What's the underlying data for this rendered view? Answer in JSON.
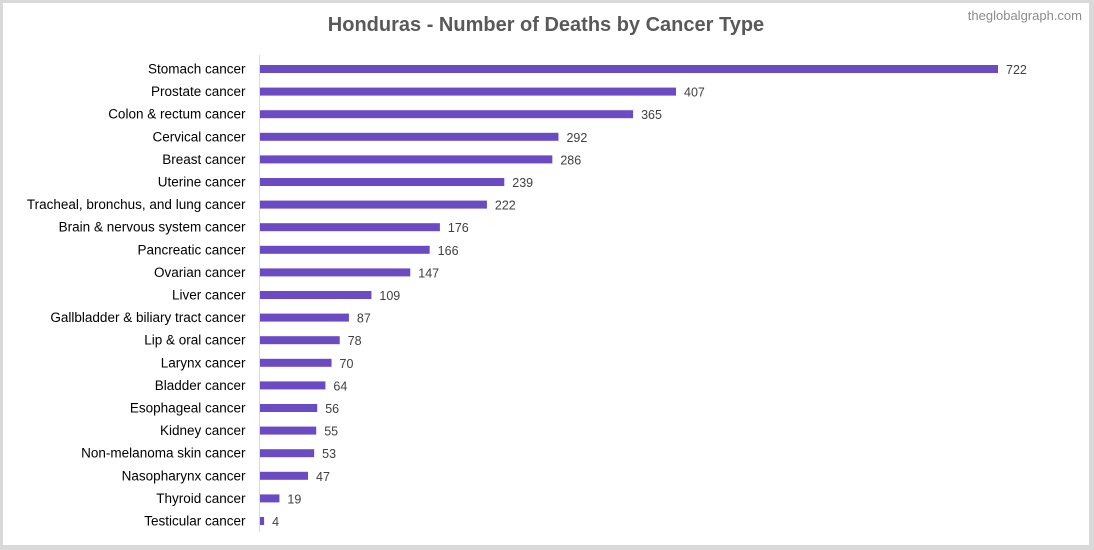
{
  "chart_title": "Honduras - Number of Deaths by Cancer Type",
  "watermark": "theglobalgraph.com",
  "colors": {
    "bar": "#6a4bc4",
    "axis": "#d9d9d9",
    "background": "#ffffff"
  },
  "chart_data": {
    "type": "bar",
    "orientation": "horizontal",
    "title": "Honduras - Number of Deaths by Cancer Type",
    "xlabel": "",
    "ylabel": "",
    "grid": false,
    "xlim": [
      0,
      722
    ],
    "categories": [
      "Stomach cancer",
      "Prostate cancer",
      "Colon & rectum cancer",
      "Cervical cancer",
      "Breast cancer",
      "Uterine cancer",
      "Tracheal, bronchus, and lung cancer",
      "Brain & nervous system cancer",
      "Pancreatic cancer",
      "Ovarian cancer",
      "Liver cancer",
      "Gallbladder & biliary tract cancer",
      "Lip & oral cancer",
      "Larynx cancer",
      "Bladder cancer",
      "Esophageal cancer",
      "Kidney cancer",
      "Non-melanoma skin cancer",
      "Nasopharynx cancer",
      "Thyroid cancer",
      "Testicular cancer"
    ],
    "values": [
      722,
      407,
      365,
      292,
      286,
      239,
      222,
      176,
      166,
      147,
      109,
      87,
      78,
      70,
      64,
      56,
      55,
      53,
      47,
      19,
      4
    ]
  }
}
